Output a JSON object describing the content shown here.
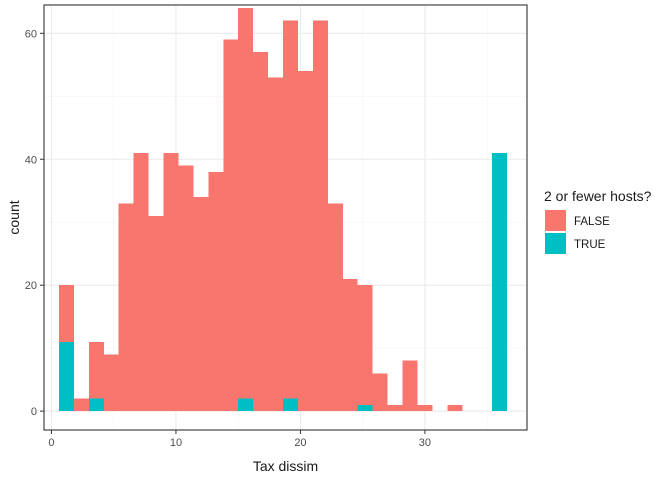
{
  "chart_data": {
    "type": "bar",
    "subtype": "stacked-histogram",
    "xlabel": "Tax dissim",
    "ylabel": "count",
    "xlim": [
      -0.6,
      38.2
    ],
    "ylim": [
      -3.0,
      64.5
    ],
    "x_ticks": [
      0,
      10,
      20,
      30
    ],
    "y_ticks": [
      0,
      20,
      40,
      60
    ],
    "grid": true,
    "legend_position": "right",
    "bin_width": 1.2,
    "bin_start": 0.6,
    "bins": 30,
    "series": [
      {
        "name": "FALSE",
        "color": "#F8766D",
        "values": [
          9,
          2,
          9,
          9,
          33,
          41,
          31,
          41,
          39,
          34,
          38,
          59,
          62,
          57,
          53,
          60,
          54,
          62,
          33,
          21,
          19,
          6,
          1,
          8,
          1,
          0,
          1,
          0,
          0,
          0
        ]
      },
      {
        "name": "TRUE",
        "color": "#00BFC4",
        "values": [
          11,
          0,
          2,
          0,
          0,
          0,
          0,
          0,
          0,
          0,
          0,
          0,
          2,
          0,
          0,
          2,
          0,
          0,
          0,
          0,
          1,
          0,
          0,
          0,
          0,
          0,
          0,
          0,
          0,
          41
        ]
      }
    ],
    "legend": {
      "title": "2 or fewer hosts?",
      "entries": [
        "FALSE",
        "TRUE"
      ]
    }
  },
  "colors": {
    "panel_border": "#333333",
    "grid_major": "#ebebeb",
    "grid_minor": "#f5f5f5",
    "false_fill": "#F8766D",
    "true_fill": "#00BFC4"
  }
}
